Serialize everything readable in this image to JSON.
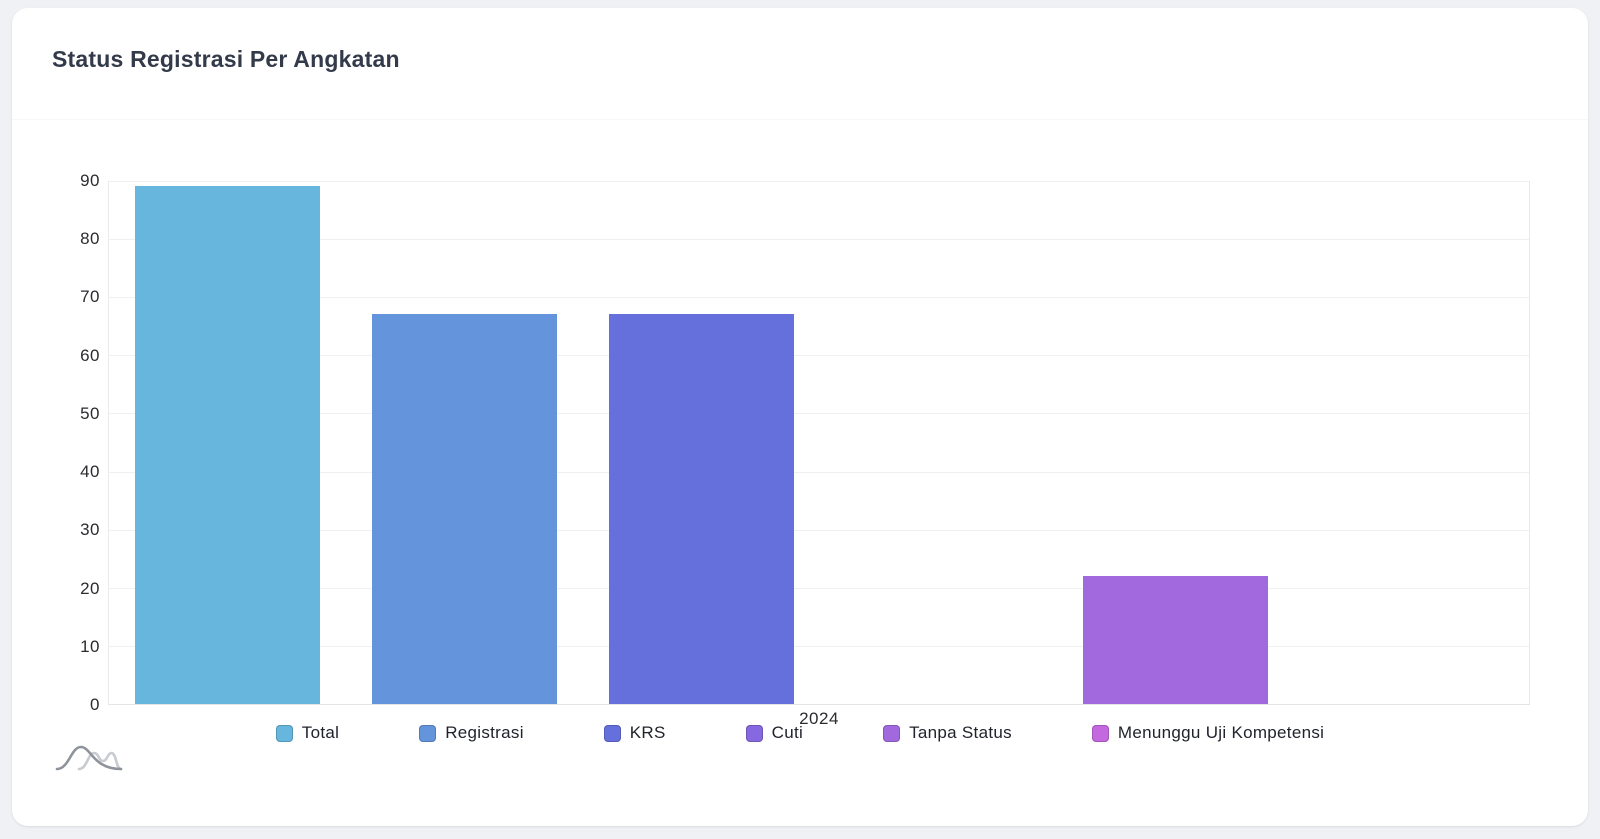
{
  "card": {
    "title": "Status Registrasi Per Angkatan"
  },
  "chart_data": {
    "type": "bar",
    "title": "Status Registrasi Per Angkatan",
    "categories": [
      "2024"
    ],
    "series": [
      {
        "name": "Total",
        "color": "#66b6dd",
        "values": [
          89
        ]
      },
      {
        "name": "Registrasi",
        "color": "#6494dc",
        "values": [
          67
        ]
      },
      {
        "name": "KRS",
        "color": "#6570dd",
        "values": [
          67
        ]
      },
      {
        "name": "Cuti",
        "color": "#8668e0",
        "values": [
          0
        ]
      },
      {
        "name": "Tanpa Status",
        "color": "#a269de",
        "values": [
          22
        ]
      },
      {
        "name": "Menunggu Uji Kompetensi",
        "color": "#c468e0",
        "values": [
          0
        ]
      }
    ],
    "xlabel": "",
    "ylabel": "",
    "ylim": [
      0,
      90
    ],
    "ytick_step": 10,
    "grid": true,
    "legend_position": "bottom"
  },
  "icons": {
    "watermark": "waves-icon"
  }
}
